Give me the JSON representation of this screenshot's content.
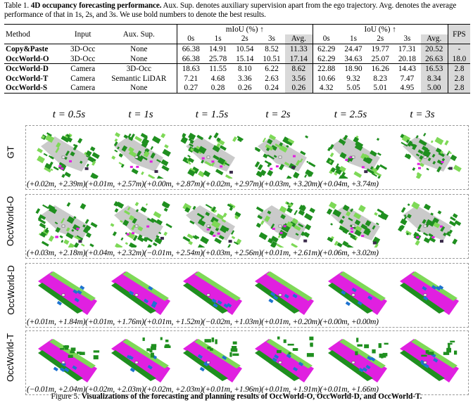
{
  "caption_top": {
    "label": "Table 1.",
    "title": "4D occupancy forecasting performance.",
    "text": "Aux. Sup. denotes auxiliary supervision apart from the ego trajectory. Avg. denotes the average performance of that in 1s, 2s, and 3s. We use bold numbers to denote the best results."
  },
  "table": {
    "col_method": "Method",
    "col_input": "Input",
    "col_aux": "Aux. Sup.",
    "group_miou": "mIoU (%) ↑",
    "group_iou": "IoU (%) ↑",
    "col_fps": "FPS",
    "sub": [
      "0s",
      "1s",
      "2s",
      "3s",
      "Avg."
    ],
    "rows": [
      {
        "method": "Copy&Paste",
        "input": "3D-Occ",
        "aux": "None",
        "miou": [
          "66.38",
          "14.91",
          "10.54",
          "8.52",
          "11.33"
        ],
        "iou": [
          "62.29",
          "24.47",
          "19.77",
          "17.31",
          "20.52"
        ],
        "fps": "-"
      },
      {
        "method": "OccWorld-O",
        "input": "3D-Occ",
        "aux": "None",
        "miou": [
          "66.38",
          "25.78",
          "15.14",
          "10.51",
          "17.14"
        ],
        "iou": [
          "62.29",
          "34.63",
          "25.07",
          "20.18",
          "26.63"
        ],
        "fps": "18.0"
      },
      {
        "method": "OccWorld-D",
        "input": "Camera",
        "aux": "3D-Occ",
        "miou": [
          "18.63",
          "11.55",
          "8.10",
          "6.22",
          "8.62"
        ],
        "iou": [
          "22.88",
          "18.90",
          "16.26",
          "14.43",
          "16.53"
        ],
        "fps": "2.8"
      },
      {
        "method": "OccWorld-T",
        "input": "Camera",
        "aux": "Semantic LiDAR",
        "miou": [
          "7.21",
          "4.68",
          "3.36",
          "2.63",
          "3.56"
        ],
        "iou": [
          "10.66",
          "9.32",
          "8.23",
          "7.47",
          "8.34"
        ],
        "fps": "2.8"
      },
      {
        "method": "OccWorld-S",
        "input": "Camera",
        "aux": "None",
        "miou": [
          "0.27",
          "0.28",
          "0.26",
          "0.24",
          "0.26"
        ],
        "iou": [
          "4.32",
          "5.05",
          "5.01",
          "4.95",
          "5.00"
        ],
        "fps": "2.8"
      }
    ]
  },
  "time_heads": [
    "0.5s",
    "1s",
    "1.5s",
    "2s",
    "2.5s",
    "3s"
  ],
  "time_prefix": "t = ",
  "rows": [
    {
      "label": "GT",
      "coords": [
        "(+0.02m, +2.39m)",
        "(+0.01m, +2.57m)",
        "(+0.00m, +2.87m)",
        "(+0.02m, +2.97m)",
        "(+0.03m, +3.20m)",
        "(+0.04m, +3.74m)"
      ]
    },
    {
      "label": "OccWorld-O",
      "coords": [
        "(+0.03m, +2.18m)",
        "(+0.04m, +2.32m)",
        "(−0.01m, +2.54m)",
        "(+0.03m, +2.56m)",
        "(+0.01m, +2.61m)",
        "(+0.06m, +3.02m)"
      ]
    },
    {
      "label": "OccWorld-D",
      "coords": [
        "(+0.01m, +1.84m)",
        "(+0.01m, +1.76m)",
        "(+0.01m, +1.52m)",
        "(−0.02m, +1.03m)",
        "(+0.01m, +0.20m)",
        "(+0.00m, +0.00m)"
      ]
    },
    {
      "label": "OccWorld-T",
      "coords": [
        "(−0.01m, +2.04m)",
        "(+0.02m, +2.03m)",
        "(+0.02m, +2.03m)",
        "(+0.01m, +1.96m)",
        "(+0.01m, +1.91m)",
        "(+0.01m, +1.66m)"
      ]
    }
  ],
  "caption_bottom": {
    "label": "Figure 5.",
    "title": "Visualizations of the forecasting and planning results of OccWorld-O, OccWorld-D, and OccWorld-T."
  },
  "colors": {
    "vegetation": "#1f8f1f",
    "light_green": "#7ed957",
    "road": "#e020e0",
    "car": "#1e73d0",
    "dark": "#3a2a4a",
    "gray": "#b8b8b8"
  }
}
